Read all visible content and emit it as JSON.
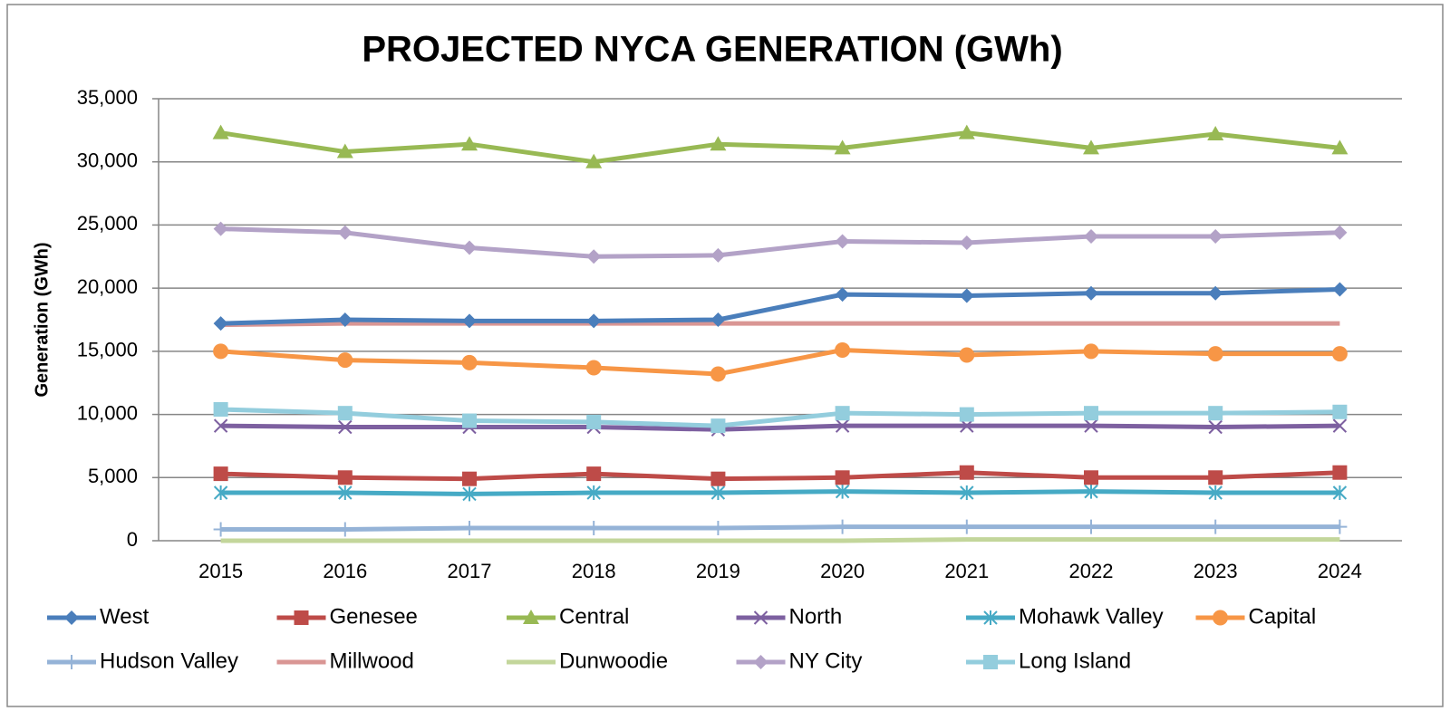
{
  "chart_data": {
    "type": "line",
    "title": "PROJECTED NYCA GENERATION (GWh)",
    "y_label": "Generation (GWh)",
    "categories": [
      "2015",
      "2016",
      "2017",
      "2018",
      "2019",
      "2020",
      "2021",
      "2022",
      "2023",
      "2024"
    ],
    "ylim": [
      0,
      35000
    ],
    "yticks": [
      0,
      {
        "value": 5000,
        "label": "5,000"
      },
      {
        "value": 10000,
        "label": "10,000"
      },
      {
        "value": 15000,
        "label": "15,000"
      },
      {
        "value": 20000,
        "label": "20,000"
      },
      {
        "value": 25000,
        "label": "25,000"
      },
      {
        "value": 30000,
        "label": "30,000"
      },
      {
        "value": 35000,
        "label": "35,000"
      }
    ],
    "grid": true,
    "legend": "bottom",
    "series": [
      {
        "name": "West",
        "color": "#4a7ebb",
        "marker": "diamond",
        "values": [
          17200,
          17500,
          17400,
          17400,
          17500,
          19500,
          19400,
          19600,
          19600,
          19900
        ]
      },
      {
        "name": "Genesee",
        "color": "#be4b48",
        "marker": "square",
        "values": [
          5300,
          5000,
          4900,
          5300,
          4900,
          5000,
          5400,
          5000,
          5000,
          5400
        ]
      },
      {
        "name": "Central",
        "color": "#98b954",
        "marker": "triangle",
        "values": [
          32300,
          30800,
          31400,
          30000,
          31400,
          31100,
          32300,
          31100,
          32200,
          31100
        ]
      },
      {
        "name": "North",
        "color": "#7d60a0",
        "marker": "x",
        "values": [
          9100,
          9000,
          9000,
          9000,
          8800,
          9100,
          9100,
          9100,
          9000,
          9100
        ]
      },
      {
        "name": "Mohawk Valley",
        "color": "#46aac5",
        "marker": "star",
        "values": [
          3800,
          3800,
          3700,
          3800,
          3800,
          3900,
          3800,
          3900,
          3800,
          3800
        ]
      },
      {
        "name": "Capital",
        "color": "#f79646",
        "marker": "circle",
        "values": [
          15000,
          14300,
          14100,
          13700,
          13200,
          15100,
          14700,
          15000,
          14800,
          14800
        ]
      },
      {
        "name": "Hudson Valley",
        "color": "#95b3d7",
        "marker": "plus",
        "values": [
          900,
          900,
          1000,
          1000,
          1000,
          1100,
          1100,
          1100,
          1100,
          1100
        ]
      },
      {
        "name": "Millwood",
        "color": "#d99694",
        "marker": "none",
        "values": [
          17100,
          17200,
          17200,
          17200,
          17200,
          17200,
          17200,
          17200,
          17200,
          17200
        ]
      },
      {
        "name": "Dunwoodie",
        "color": "#c3d69b",
        "marker": "none",
        "values": [
          0,
          0,
          0,
          0,
          0,
          0,
          100,
          100,
          100,
          100
        ]
      },
      {
        "name": "NY City",
        "color": "#b3a2c7",
        "marker": "diamond",
        "values": [
          24700,
          24400,
          23200,
          22500,
          22600,
          23700,
          23600,
          24100,
          24100,
          24400
        ]
      },
      {
        "name": "Long Island",
        "color": "#93cddd",
        "marker": "square",
        "values": [
          10400,
          10100,
          9500,
          9400,
          9100,
          10100,
          10000,
          10100,
          10100,
          10200
        ]
      }
    ]
  }
}
